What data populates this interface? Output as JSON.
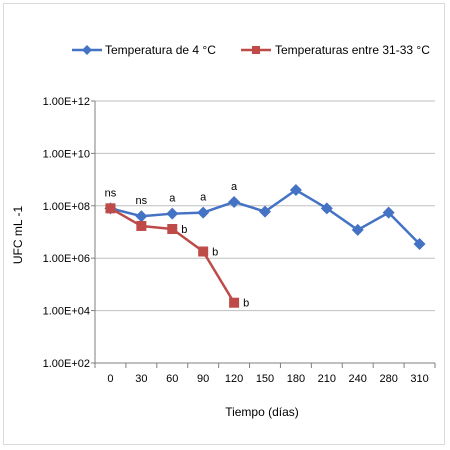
{
  "chart_data": {
    "type": "line",
    "xlabel": "Tiempo (días)",
    "ylabel": "UFC mL -1",
    "y_scale": "log",
    "ylim": [
      100,
      1000000000000
    ],
    "y_tick_labels": [
      "1.00E+02",
      "1.00E+04",
      "1.00E+06",
      "1.00E+08",
      "1.00E+10",
      "1.00E+12"
    ],
    "y_tick_values": [
      100,
      10000,
      1000000,
      100000000,
      10000000000,
      1000000000000
    ],
    "x": [
      0,
      30,
      60,
      90,
      120,
      150,
      180,
      210,
      240,
      280,
      310
    ],
    "x_tick_labels": [
      "0",
      "30",
      "60",
      "90",
      "120",
      "150",
      "180",
      "210",
      "240",
      "280",
      "310"
    ],
    "grid": "horizontal major gridlines",
    "legend_position": "top",
    "series": [
      {
        "name": "Temperatura de 4 °C",
        "color": "#4472C4",
        "marker": "diamond",
        "values": [
          80000000,
          40000000,
          50000000,
          55000000,
          140000000,
          60000000,
          400000000,
          80000000,
          12000000,
          55000000,
          3500000
        ]
      },
      {
        "name": "Temperaturas entre 31-33 °C",
        "color": "#BE4B48",
        "marker": "square",
        "values": [
          80000000,
          17000000,
          13000000,
          1800000,
          20000,
          null,
          null,
          null,
          null,
          null,
          null
        ]
      }
    ],
    "annotations": [
      {
        "x": 0,
        "text": "ns",
        "series": 0,
        "position": "above"
      },
      {
        "x": 30,
        "text": "ns",
        "series": 0,
        "position": "above"
      },
      {
        "x": 60,
        "text": "a",
        "series": 0,
        "position": "above"
      },
      {
        "x": 90,
        "text": "a",
        "series": 0,
        "position": "above"
      },
      {
        "x": 120,
        "text": "a",
        "series": 0,
        "position": "above"
      },
      {
        "x": 60,
        "text": "b",
        "series": 1,
        "position": "right"
      },
      {
        "x": 90,
        "text": "b",
        "series": 1,
        "position": "right"
      },
      {
        "x": 120,
        "text": "b",
        "series": 1,
        "position": "right"
      }
    ]
  }
}
